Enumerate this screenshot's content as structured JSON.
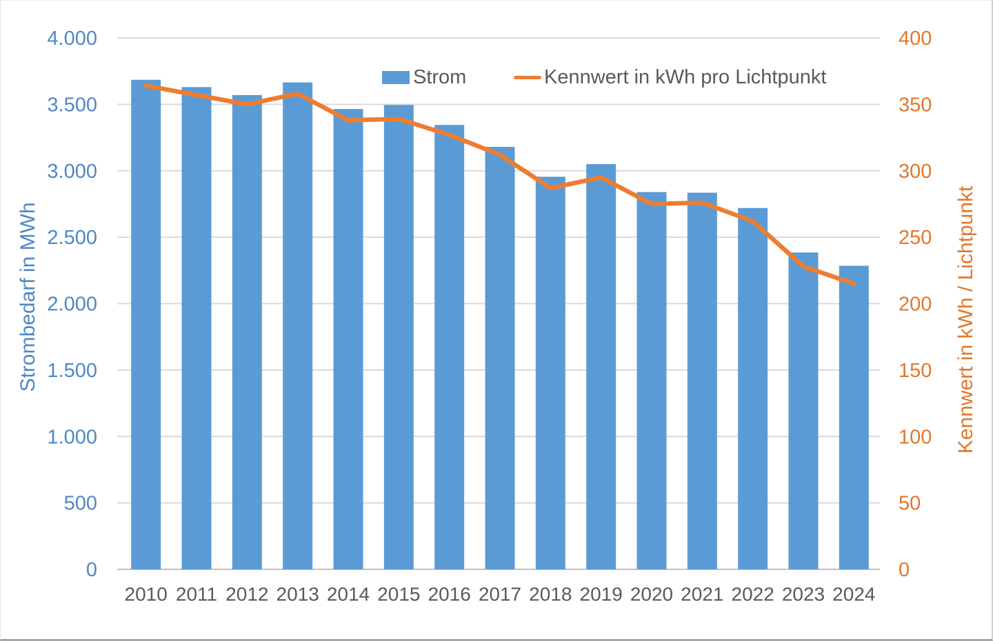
{
  "chart_data": {
    "type": "bar",
    "title": "",
    "categories": [
      "2010",
      "2011",
      "2012",
      "2013",
      "2014",
      "2015",
      "2016",
      "2017",
      "2018",
      "2019",
      "2020",
      "2021",
      "2022",
      "2023",
      "2024"
    ],
    "series": [
      {
        "name": "Strom",
        "type": "bar",
        "axis": "left",
        "color": "#5B9BD5",
        "values": [
          3685,
          3630,
          3570,
          3665,
          3465,
          3495,
          3345,
          3180,
          2955,
          3050,
          2840,
          2835,
          2720,
          2385,
          2285
        ]
      },
      {
        "name": "Kennwert in kWh pro Lichtpunkt",
        "type": "line",
        "axis": "right",
        "color": "#ED7D31",
        "values": [
          364,
          357,
          350,
          358,
          338,
          339,
          327,
          312,
          287,
          295,
          275,
          276,
          262,
          228,
          215
        ]
      }
    ],
    "left_axis": {
      "title": "Strombedarf in MWh",
      "min": 0,
      "max": 4000,
      "step": 500,
      "tick_labels": [
        "0",
        "500",
        "1.000",
        "1.500",
        "2.000",
        "2.500",
        "3.000",
        "3.500",
        "4.000"
      ],
      "text_color": "#4E87C6"
    },
    "right_axis": {
      "title": "Kennwert in kWh / Lichtpunkt",
      "min": 0,
      "max": 400,
      "step": 50,
      "tick_labels": [
        "0",
        "50",
        "100",
        "150",
        "200",
        "250",
        "300",
        "350",
        "400"
      ],
      "text_color": "#E2772B"
    },
    "x_axis": {
      "text_color": "#595959"
    },
    "legend": {
      "position": "top",
      "items": [
        {
          "label": "Strom",
          "swatch": "rect",
          "color": "#5B9BD5"
        },
        {
          "label": "Kennwert in kWh pro Lichtpunkt",
          "swatch": "line",
          "color": "#ED7D31"
        }
      ]
    },
    "grid": {
      "on": true,
      "color": "#D9D9D9",
      "baseline_color": "#C1C1C1"
    },
    "ylim_left": [
      0,
      4000
    ],
    "ylim_right": [
      0,
      400
    ]
  }
}
